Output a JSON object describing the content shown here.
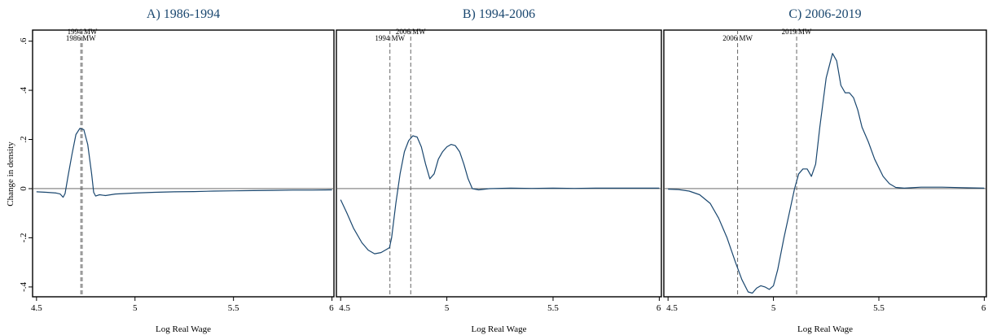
{
  "chart_data": {
    "type": "line",
    "ylabel": "Change in density",
    "xlabel": "Log Real Wage",
    "x_ticks": [
      "4.5",
      "5",
      "5.5",
      "6"
    ],
    "y_ticks": [
      ".6",
      ".4",
      ".2",
      "0",
      "-.2",
      "-.4"
    ],
    "xlim": [
      4.48,
      6.01
    ],
    "ylim": [
      -0.44,
      0.645
    ],
    "line_color": "#1a476f",
    "panels": [
      {
        "title": "A) 1986-1994",
        "mw_lines": [
          {
            "label": "1986 MW",
            "x": 4.725
          },
          {
            "label": "1994 MW",
            "x": 4.732
          }
        ],
        "points": [
          [
            4.5,
            -0.013
          ],
          [
            4.55,
            -0.015
          ],
          [
            4.6,
            -0.018
          ],
          [
            4.62,
            -0.022
          ],
          [
            4.635,
            -0.035
          ],
          [
            4.645,
            -0.02
          ],
          [
            4.66,
            0.05
          ],
          [
            4.68,
            0.14
          ],
          [
            4.7,
            0.22
          ],
          [
            4.72,
            0.245
          ],
          [
            4.74,
            0.24
          ],
          [
            4.76,
            0.18
          ],
          [
            4.78,
            0.06
          ],
          [
            4.79,
            -0.015
          ],
          [
            4.8,
            -0.03
          ],
          [
            4.82,
            -0.025
          ],
          [
            4.85,
            -0.028
          ],
          [
            4.9,
            -0.022
          ],
          [
            5.0,
            -0.018
          ],
          [
            5.1,
            -0.015
          ],
          [
            5.2,
            -0.013
          ],
          [
            5.3,
            -0.012
          ],
          [
            5.4,
            -0.01
          ],
          [
            5.5,
            -0.009
          ],
          [
            5.6,
            -0.008
          ],
          [
            5.7,
            -0.007
          ],
          [
            5.8,
            -0.006
          ],
          [
            5.9,
            -0.006
          ],
          [
            6.0,
            -0.005
          ]
        ]
      },
      {
        "title": "B) 1994-2006",
        "mw_lines": [
          {
            "label": "1994 MW",
            "x": 4.732
          },
          {
            "label": "2006 MW",
            "x": 4.83
          }
        ],
        "points": [
          [
            4.5,
            -0.045
          ],
          [
            4.53,
            -0.1
          ],
          [
            4.56,
            -0.16
          ],
          [
            4.6,
            -0.22
          ],
          [
            4.63,
            -0.25
          ],
          [
            4.66,
            -0.265
          ],
          [
            4.69,
            -0.26
          ],
          [
            4.72,
            -0.245
          ],
          [
            4.73,
            -0.24
          ],
          [
            4.74,
            -0.2
          ],
          [
            4.76,
            -0.06
          ],
          [
            4.78,
            0.06
          ],
          [
            4.8,
            0.15
          ],
          [
            4.82,
            0.195
          ],
          [
            4.84,
            0.215
          ],
          [
            4.86,
            0.21
          ],
          [
            4.88,
            0.17
          ],
          [
            4.9,
            0.1
          ],
          [
            4.92,
            0.04
          ],
          [
            4.94,
            0.06
          ],
          [
            4.96,
            0.12
          ],
          [
            4.98,
            0.15
          ],
          [
            5.0,
            0.17
          ],
          [
            5.02,
            0.18
          ],
          [
            5.04,
            0.175
          ],
          [
            5.06,
            0.15
          ],
          [
            5.08,
            0.1
          ],
          [
            5.1,
            0.04
          ],
          [
            5.12,
            0.0
          ],
          [
            5.15,
            -0.005
          ],
          [
            5.2,
            0.0
          ],
          [
            5.3,
            0.002
          ],
          [
            5.4,
            0.001
          ],
          [
            5.5,
            0.002
          ],
          [
            5.6,
            0.001
          ],
          [
            5.7,
            0.002
          ],
          [
            5.8,
            0.002
          ],
          [
            5.9,
            0.002
          ],
          [
            6.0,
            0.002
          ]
        ]
      },
      {
        "title": "C) 2006-2019",
        "mw_lines": [
          {
            "label": "2006 MW",
            "x": 4.83
          },
          {
            "label": "2019 MW",
            "x": 5.11
          }
        ],
        "points": [
          [
            4.5,
            -0.002
          ],
          [
            4.55,
            -0.004
          ],
          [
            4.6,
            -0.01
          ],
          [
            4.65,
            -0.025
          ],
          [
            4.7,
            -0.06
          ],
          [
            4.74,
            -0.12
          ],
          [
            4.78,
            -0.2
          ],
          [
            4.82,
            -0.3
          ],
          [
            4.85,
            -0.37
          ],
          [
            4.88,
            -0.42
          ],
          [
            4.9,
            -0.425
          ],
          [
            4.92,
            -0.405
          ],
          [
            4.94,
            -0.395
          ],
          [
            4.96,
            -0.4
          ],
          [
            4.98,
            -0.41
          ],
          [
            5.0,
            -0.395
          ],
          [
            5.02,
            -0.33
          ],
          [
            5.05,
            -0.2
          ],
          [
            5.08,
            -0.08
          ],
          [
            5.1,
            0.0
          ],
          [
            5.12,
            0.06
          ],
          [
            5.14,
            0.08
          ],
          [
            5.16,
            0.08
          ],
          [
            5.18,
            0.05
          ],
          [
            5.2,
            0.1
          ],
          [
            5.22,
            0.25
          ],
          [
            5.25,
            0.45
          ],
          [
            5.28,
            0.55
          ],
          [
            5.3,
            0.52
          ],
          [
            5.32,
            0.42
          ],
          [
            5.34,
            0.39
          ],
          [
            5.36,
            0.39
          ],
          [
            5.38,
            0.37
          ],
          [
            5.4,
            0.32
          ],
          [
            5.42,
            0.25
          ],
          [
            5.45,
            0.19
          ],
          [
            5.48,
            0.12
          ],
          [
            5.52,
            0.05
          ],
          [
            5.55,
            0.02
          ],
          [
            5.58,
            0.005
          ],
          [
            5.62,
            0.002
          ],
          [
            5.7,
            0.006
          ],
          [
            5.8,
            0.006
          ],
          [
            5.9,
            0.004
          ],
          [
            6.0,
            0.002
          ]
        ]
      }
    ]
  }
}
